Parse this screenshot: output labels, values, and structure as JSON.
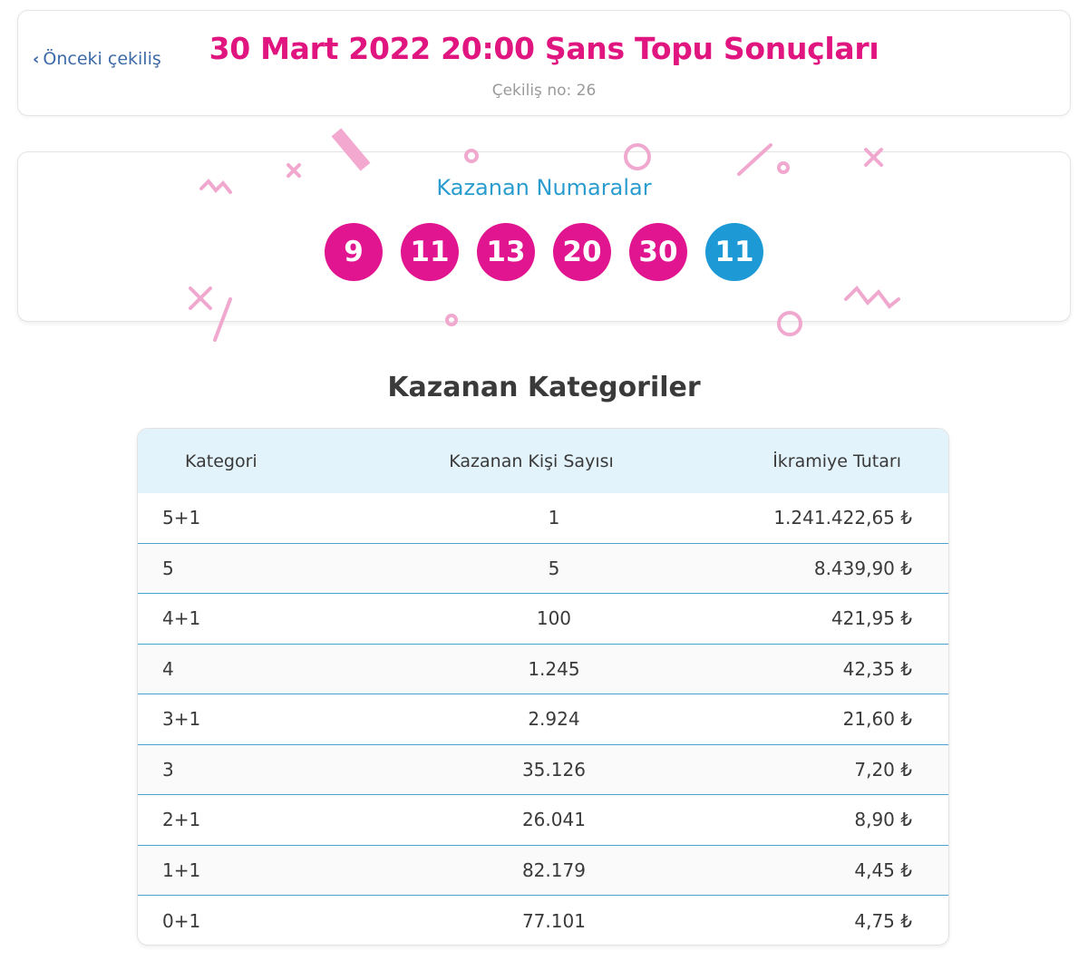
{
  "header": {
    "prev_label": "Önceki çekiliş",
    "title": "30 Mart 2022 20:00 Şans Topu Sonuçları",
    "draw_no": "Çekiliş no: 26"
  },
  "winning": {
    "title": "Kazanan Numaralar",
    "main_numbers": [
      "9",
      "11",
      "13",
      "20",
      "30"
    ],
    "bonus_number": "11",
    "colors": {
      "main": "#e0158f",
      "bonus": "#1d9ad6"
    }
  },
  "categories": {
    "title": "Kazanan Kategoriler",
    "headers": [
      "Kategori",
      "Kazanan Kişi Sayısı",
      "İkramiye Tutarı"
    ],
    "rows": [
      [
        "5+1",
        "1",
        "1.241.422,65 ₺"
      ],
      [
        "5",
        "5",
        "8.439,90 ₺"
      ],
      [
        "4+1",
        "100",
        "421,95 ₺"
      ],
      [
        "4",
        "1.245",
        "42,35 ₺"
      ],
      [
        "3+1",
        "2.924",
        "21,60 ₺"
      ],
      [
        "3",
        "35.126",
        "7,20 ₺"
      ],
      [
        "2+1",
        "26.041",
        "8,90 ₺"
      ],
      [
        "1+1",
        "82.179",
        "4,45 ₺"
      ],
      [
        "0+1",
        "77.101",
        "4,75 ₺"
      ]
    ]
  }
}
